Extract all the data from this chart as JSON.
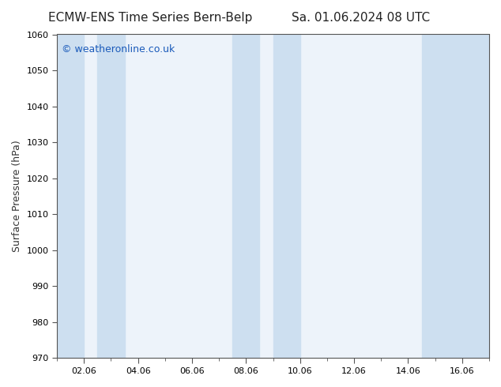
{
  "title_left": "ECMW-ENS Time Series Bern-Belp",
  "title_right": "Sa. 01.06.2024 08 UTC",
  "ylabel": "Surface Pressure (hPa)",
  "ylim": [
    970,
    1060
  ],
  "yticks": [
    970,
    980,
    990,
    1000,
    1010,
    1020,
    1030,
    1040,
    1050,
    1060
  ],
  "xtick_labels": [
    "02.06",
    "04.06",
    "06.06",
    "08.06",
    "10.06",
    "12.06",
    "14.06",
    "16.06"
  ],
  "xtick_positions": [
    2,
    4,
    6,
    8,
    10,
    12,
    14,
    16
  ],
  "xlim": [
    1,
    17
  ],
  "background_color": "#ffffff",
  "plot_bg_color": "#edf3fa",
  "shaded_bands": [
    {
      "x_start": 1.0,
      "x_end": 2.0
    },
    {
      "x_start": 2.5,
      "x_end": 3.5
    },
    {
      "x_start": 7.5,
      "x_end": 8.5
    },
    {
      "x_start": 9.0,
      "x_end": 10.0
    },
    {
      "x_start": 14.5,
      "x_end": 17.0
    }
  ],
  "shaded_color": "#cddff0",
  "watermark_text": "© weatheronline.co.uk",
  "watermark_color": "#1a5aba",
  "watermark_fontsize": 9,
  "title_fontsize": 11,
  "tick_fontsize": 8,
  "ylabel_fontsize": 9
}
